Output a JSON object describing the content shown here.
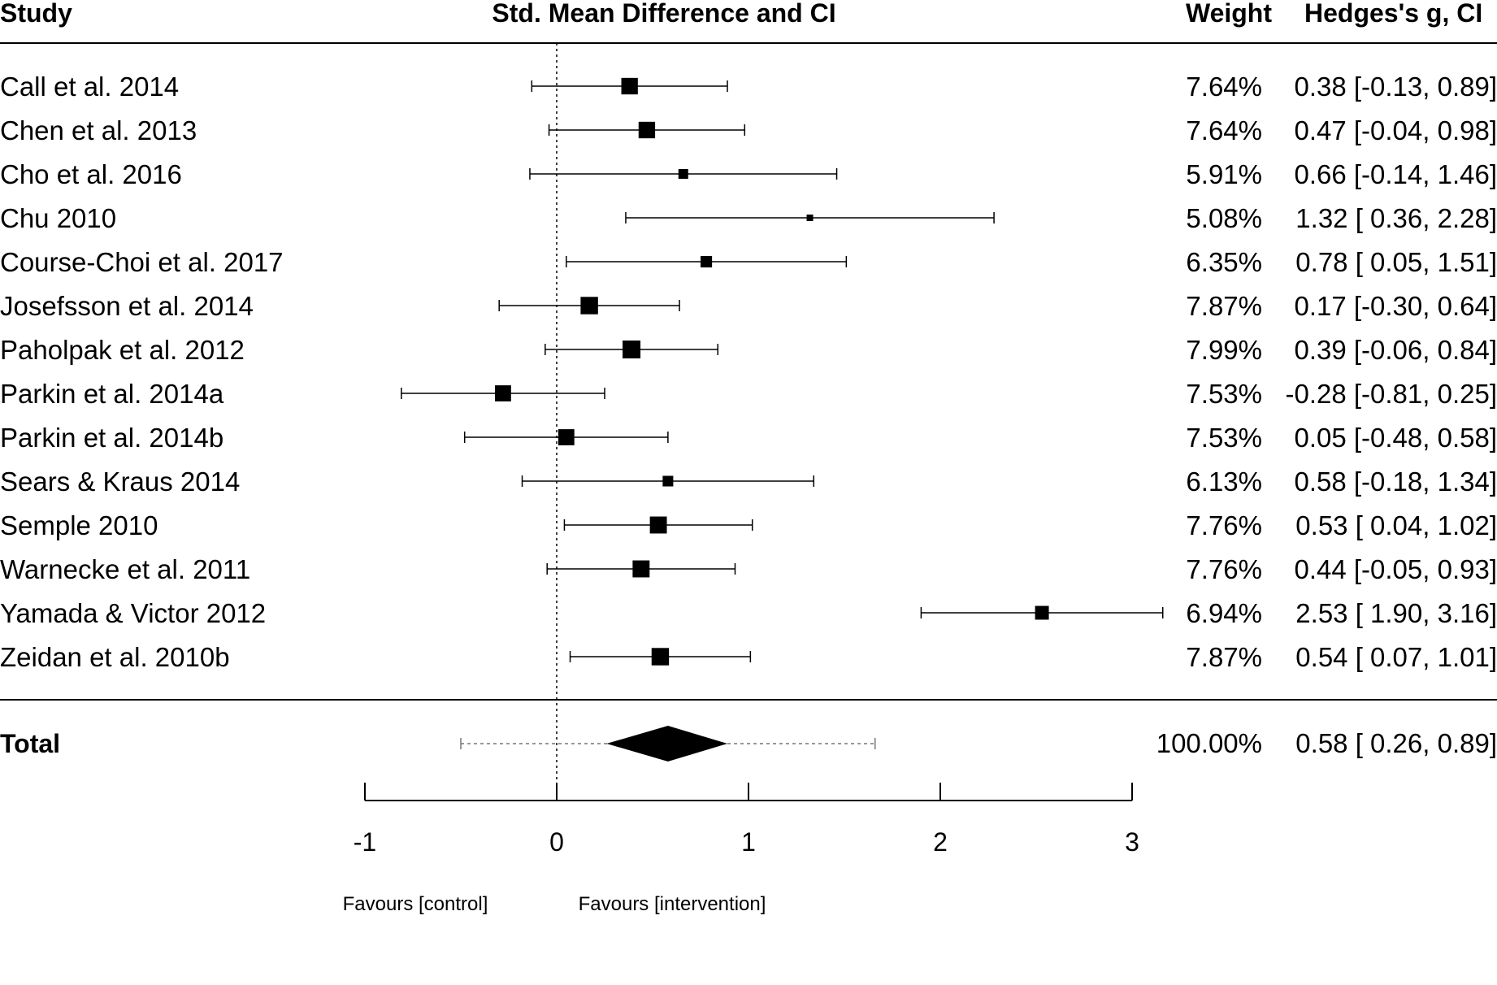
{
  "chart_data": {
    "type": "forest",
    "headers": {
      "study": "Study",
      "effect": "Std. Mean Difference and CI",
      "weight": "Weight",
      "stat": "Hedges's g, CI"
    },
    "studies": [
      {
        "name": "Call et al. 2014",
        "g": 0.38,
        "lo": -0.13,
        "hi": 0.89,
        "weight": 7.64,
        "weight_label": "7.64%",
        "ci_label": "0.38 [-0.13, 0.89]"
      },
      {
        "name": "Chen et al. 2013",
        "g": 0.47,
        "lo": -0.04,
        "hi": 0.98,
        "weight": 7.64,
        "weight_label": "7.64%",
        "ci_label": "0.47 [-0.04, 0.98]"
      },
      {
        "name": "Cho et al. 2016",
        "g": 0.66,
        "lo": -0.14,
        "hi": 1.46,
        "weight": 5.91,
        "weight_label": "5.91%",
        "ci_label": "0.66 [-0.14, 1.46]"
      },
      {
        "name": "Chu 2010",
        "g": 1.32,
        "lo": 0.36,
        "hi": 2.28,
        "weight": 5.08,
        "weight_label": "5.08%",
        "ci_label": "1.32 [ 0.36, 2.28]"
      },
      {
        "name": "Course-Choi et al. 2017",
        "g": 0.78,
        "lo": 0.05,
        "hi": 1.51,
        "weight": 6.35,
        "weight_label": "6.35%",
        "ci_label": "0.78 [ 0.05, 1.51]"
      },
      {
        "name": "Josefsson et al. 2014",
        "g": 0.17,
        "lo": -0.3,
        "hi": 0.64,
        "weight": 7.87,
        "weight_label": "7.87%",
        "ci_label": "0.17 [-0.30, 0.64]"
      },
      {
        "name": "Paholpak et al. 2012",
        "g": 0.39,
        "lo": -0.06,
        "hi": 0.84,
        "weight": 7.99,
        "weight_label": "7.99%",
        "ci_label": "0.39 [-0.06, 0.84]"
      },
      {
        "name": "Parkin et al. 2014a",
        "g": -0.28,
        "lo": -0.81,
        "hi": 0.25,
        "weight": 7.53,
        "weight_label": "7.53%",
        "ci_label": "-0.28 [-0.81, 0.25]"
      },
      {
        "name": "Parkin et al. 2014b",
        "g": 0.05,
        "lo": -0.48,
        "hi": 0.58,
        "weight": 7.53,
        "weight_label": "7.53%",
        "ci_label": "0.05 [-0.48, 0.58]"
      },
      {
        "name": "Sears & Kraus 2014",
        "g": 0.58,
        "lo": -0.18,
        "hi": 1.34,
        "weight": 6.13,
        "weight_label": "6.13%",
        "ci_label": "0.58 [-0.18, 1.34]"
      },
      {
        "name": "Semple 2010",
        "g": 0.53,
        "lo": 0.04,
        "hi": 1.02,
        "weight": 7.76,
        "weight_label": "7.76%",
        "ci_label": "0.53 [ 0.04, 1.02]"
      },
      {
        "name": "Warnecke et al. 2011",
        "g": 0.44,
        "lo": -0.05,
        "hi": 0.93,
        "weight": 7.76,
        "weight_label": "7.76%",
        "ci_label": "0.44 [-0.05, 0.93]"
      },
      {
        "name": "Yamada & Victor 2012",
        "g": 2.53,
        "lo": 1.9,
        "hi": 3.16,
        "weight": 6.94,
        "weight_label": "6.94%",
        "ci_label": "2.53 [ 1.90, 3.16]"
      },
      {
        "name": "Zeidan et al. 2010b",
        "g": 0.54,
        "lo": 0.07,
        "hi": 1.01,
        "weight": 7.87,
        "weight_label": "7.87%",
        "ci_label": "0.54 [ 0.07, 1.01]"
      }
    ],
    "total": {
      "name": "Total",
      "g": 0.58,
      "lo": 0.26,
      "hi": 0.89,
      "pi_lo": -0.5,
      "pi_hi": 1.66,
      "weight_label": "100.00%",
      "ci_label": "0.58 [ 0.26, 0.89]"
    },
    "xaxis": {
      "ticks": [
        -1,
        0,
        1,
        2,
        3
      ],
      "tick_labels": [
        "-1",
        "0",
        "1",
        "2",
        "3"
      ],
      "range": [
        -1,
        3
      ],
      "reference": 0
    },
    "favours": {
      "left": "Favours [control]",
      "right": "Favours [intervention]"
    }
  }
}
